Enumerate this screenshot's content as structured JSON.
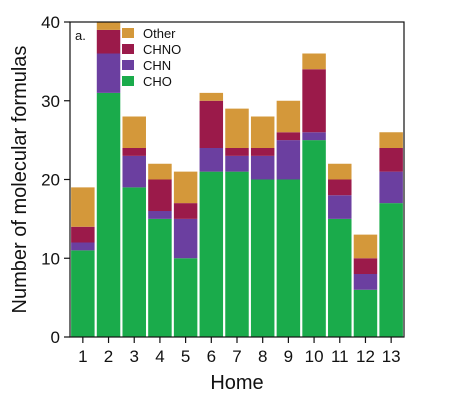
{
  "chart_data": {
    "type": "bar",
    "stacked": true,
    "panel_label": "a.",
    "xlabel": "Home",
    "ylabel": "Number of molecular formulas",
    "categories": [
      "1",
      "2",
      "3",
      "4",
      "5",
      "6",
      "7",
      "8",
      "9",
      "10",
      "11",
      "12",
      "13"
    ],
    "yticks": [
      "0",
      "10",
      "20",
      "30",
      "40"
    ],
    "ylim": [
      0,
      40
    ],
    "legend_position": "top-left",
    "legend_order": [
      "Other",
      "CHNO",
      "CHN",
      "CHO"
    ],
    "series": [
      {
        "name": "CHO",
        "color": "#1aab4b",
        "values": [
          11,
          31,
          19,
          15,
          10,
          21,
          21,
          20,
          20,
          25,
          15,
          6,
          17
        ]
      },
      {
        "name": "CHN",
        "color": "#6b3fa0",
        "values": [
          1,
          5,
          4,
          1,
          5,
          3,
          2,
          3,
          5,
          1,
          3,
          2,
          4
        ]
      },
      {
        "name": "CHNO",
        "color": "#9b1a4a",
        "values": [
          2,
          3,
          1,
          4,
          2,
          6,
          1,
          1,
          1,
          8,
          2,
          2,
          3
        ]
      },
      {
        "name": "Other",
        "color": "#d4983a",
        "values": [
          5,
          1,
          4,
          2,
          4,
          1,
          5,
          4,
          4,
          2,
          2,
          3,
          2
        ]
      }
    ]
  }
}
